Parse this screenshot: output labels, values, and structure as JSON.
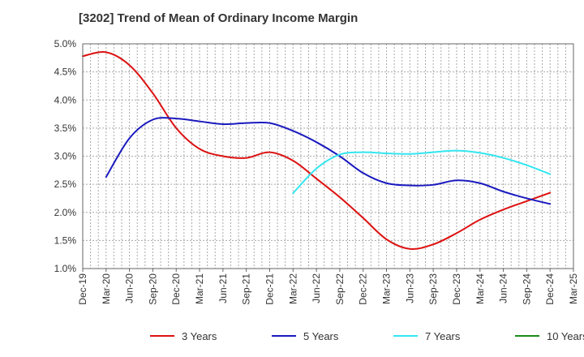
{
  "chart_data": {
    "type": "line",
    "title": "[3202]  Trend of Mean of Ordinary Income Margin",
    "xlabel": "",
    "ylabel": "",
    "ylim": [
      1.0,
      5.0
    ],
    "y_ticks": [
      "1.0%",
      "1.5%",
      "2.0%",
      "2.5%",
      "3.0%",
      "3.5%",
      "4.0%",
      "4.5%",
      "5.0%"
    ],
    "x_ticks": [
      "Dec-19",
      "Mar-20",
      "Jun-20",
      "Sep-20",
      "Dec-20",
      "Mar-21",
      "Jun-21",
      "Sep-21",
      "Dec-21",
      "Mar-22",
      "Jun-22",
      "Sep-22",
      "Dec-22",
      "Mar-23",
      "Jun-23",
      "Sep-23",
      "Dec-23",
      "Mar-24",
      "Jun-24",
      "Sep-24",
      "Dec-24",
      "Mar-25"
    ],
    "grid": true,
    "legend_position": "bottom",
    "series": [
      {
        "name": "3 Years",
        "color": "#dd1111",
        "x": [
          "Dec-19",
          "Mar-20",
          "Jun-20",
          "Sep-20",
          "Dec-20",
          "Mar-21",
          "Jun-21",
          "Sep-21",
          "Dec-21",
          "Mar-22",
          "Jun-22",
          "Sep-22",
          "Dec-22",
          "Mar-23",
          "Jun-23",
          "Sep-23",
          "Dec-23",
          "Mar-24",
          "Jun-24",
          "Sep-24",
          "Dec-24"
        ],
        "values": [
          4.78,
          4.85,
          4.62,
          4.12,
          3.5,
          3.13,
          3.0,
          2.97,
          3.07,
          2.92,
          2.6,
          2.27,
          1.9,
          1.52,
          1.35,
          1.43,
          1.63,
          1.87,
          2.05,
          2.2,
          2.35
        ]
      },
      {
        "name": "5 Years",
        "color": "#1a1abf",
        "x": [
          "Mar-20",
          "Jun-20",
          "Sep-20",
          "Dec-20",
          "Mar-21",
          "Jun-21",
          "Sep-21",
          "Dec-21",
          "Mar-22",
          "Jun-22",
          "Sep-22",
          "Dec-22",
          "Mar-23",
          "Jun-23",
          "Sep-23",
          "Dec-23",
          "Mar-24",
          "Jun-24",
          "Sep-24",
          "Dec-24"
        ],
        "values": [
          2.63,
          3.32,
          3.65,
          3.67,
          3.62,
          3.57,
          3.59,
          3.59,
          3.45,
          3.25,
          3.0,
          2.7,
          2.52,
          2.48,
          2.49,
          2.57,
          2.52,
          2.37,
          2.25,
          2.15
        ]
      },
      {
        "name": "7 Years",
        "color": "#33e6f0",
        "x": [
          "Mar-22",
          "Jun-22",
          "Sep-22",
          "Dec-22",
          "Mar-23",
          "Jun-23",
          "Sep-23",
          "Dec-23",
          "Mar-24",
          "Jun-24",
          "Sep-24",
          "Dec-24"
        ],
        "values": [
          2.34,
          2.78,
          3.03,
          3.07,
          3.05,
          3.04,
          3.07,
          3.1,
          3.06,
          2.97,
          2.84,
          2.68
        ]
      },
      {
        "name": "10 Years",
        "color": "#1a8c1a",
        "x": [],
        "values": []
      }
    ]
  }
}
